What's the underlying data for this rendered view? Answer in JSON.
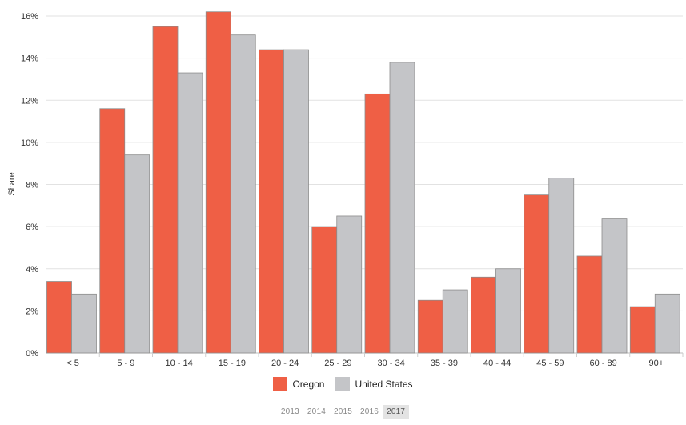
{
  "chart_data": {
    "type": "bar",
    "ylabel": "Share",
    "ylim": [
      0,
      16
    ],
    "yticks": [
      "0%",
      "2%",
      "4%",
      "6%",
      "8%",
      "10%",
      "12%",
      "14%",
      "16%"
    ],
    "categories": [
      "< 5",
      "5 - 9",
      "10 - 14",
      "15 - 19",
      "20 - 24",
      "25 - 29",
      "30 - 34",
      "35 - 39",
      "40 - 44",
      "45 - 59",
      "60 - 89",
      "90+"
    ],
    "series": [
      {
        "name": "Oregon",
        "color": "#ef5f45",
        "values": [
          3.4,
          11.6,
          15.5,
          16.2,
          14.4,
          6.0,
          12.3,
          2.5,
          3.6,
          7.5,
          4.6,
          2.2
        ]
      },
      {
        "name": "United States",
        "color": "#c4c5c8",
        "values": [
          2.8,
          9.4,
          13.3,
          15.1,
          14.4,
          6.5,
          13.8,
          3.0,
          4.0,
          8.3,
          6.4,
          2.8
        ]
      }
    ],
    "grid": true,
    "legend_position": "bottom-center"
  },
  "year_selector": {
    "years": [
      "2013",
      "2014",
      "2015",
      "2016",
      "2017"
    ],
    "selected": "2017"
  }
}
